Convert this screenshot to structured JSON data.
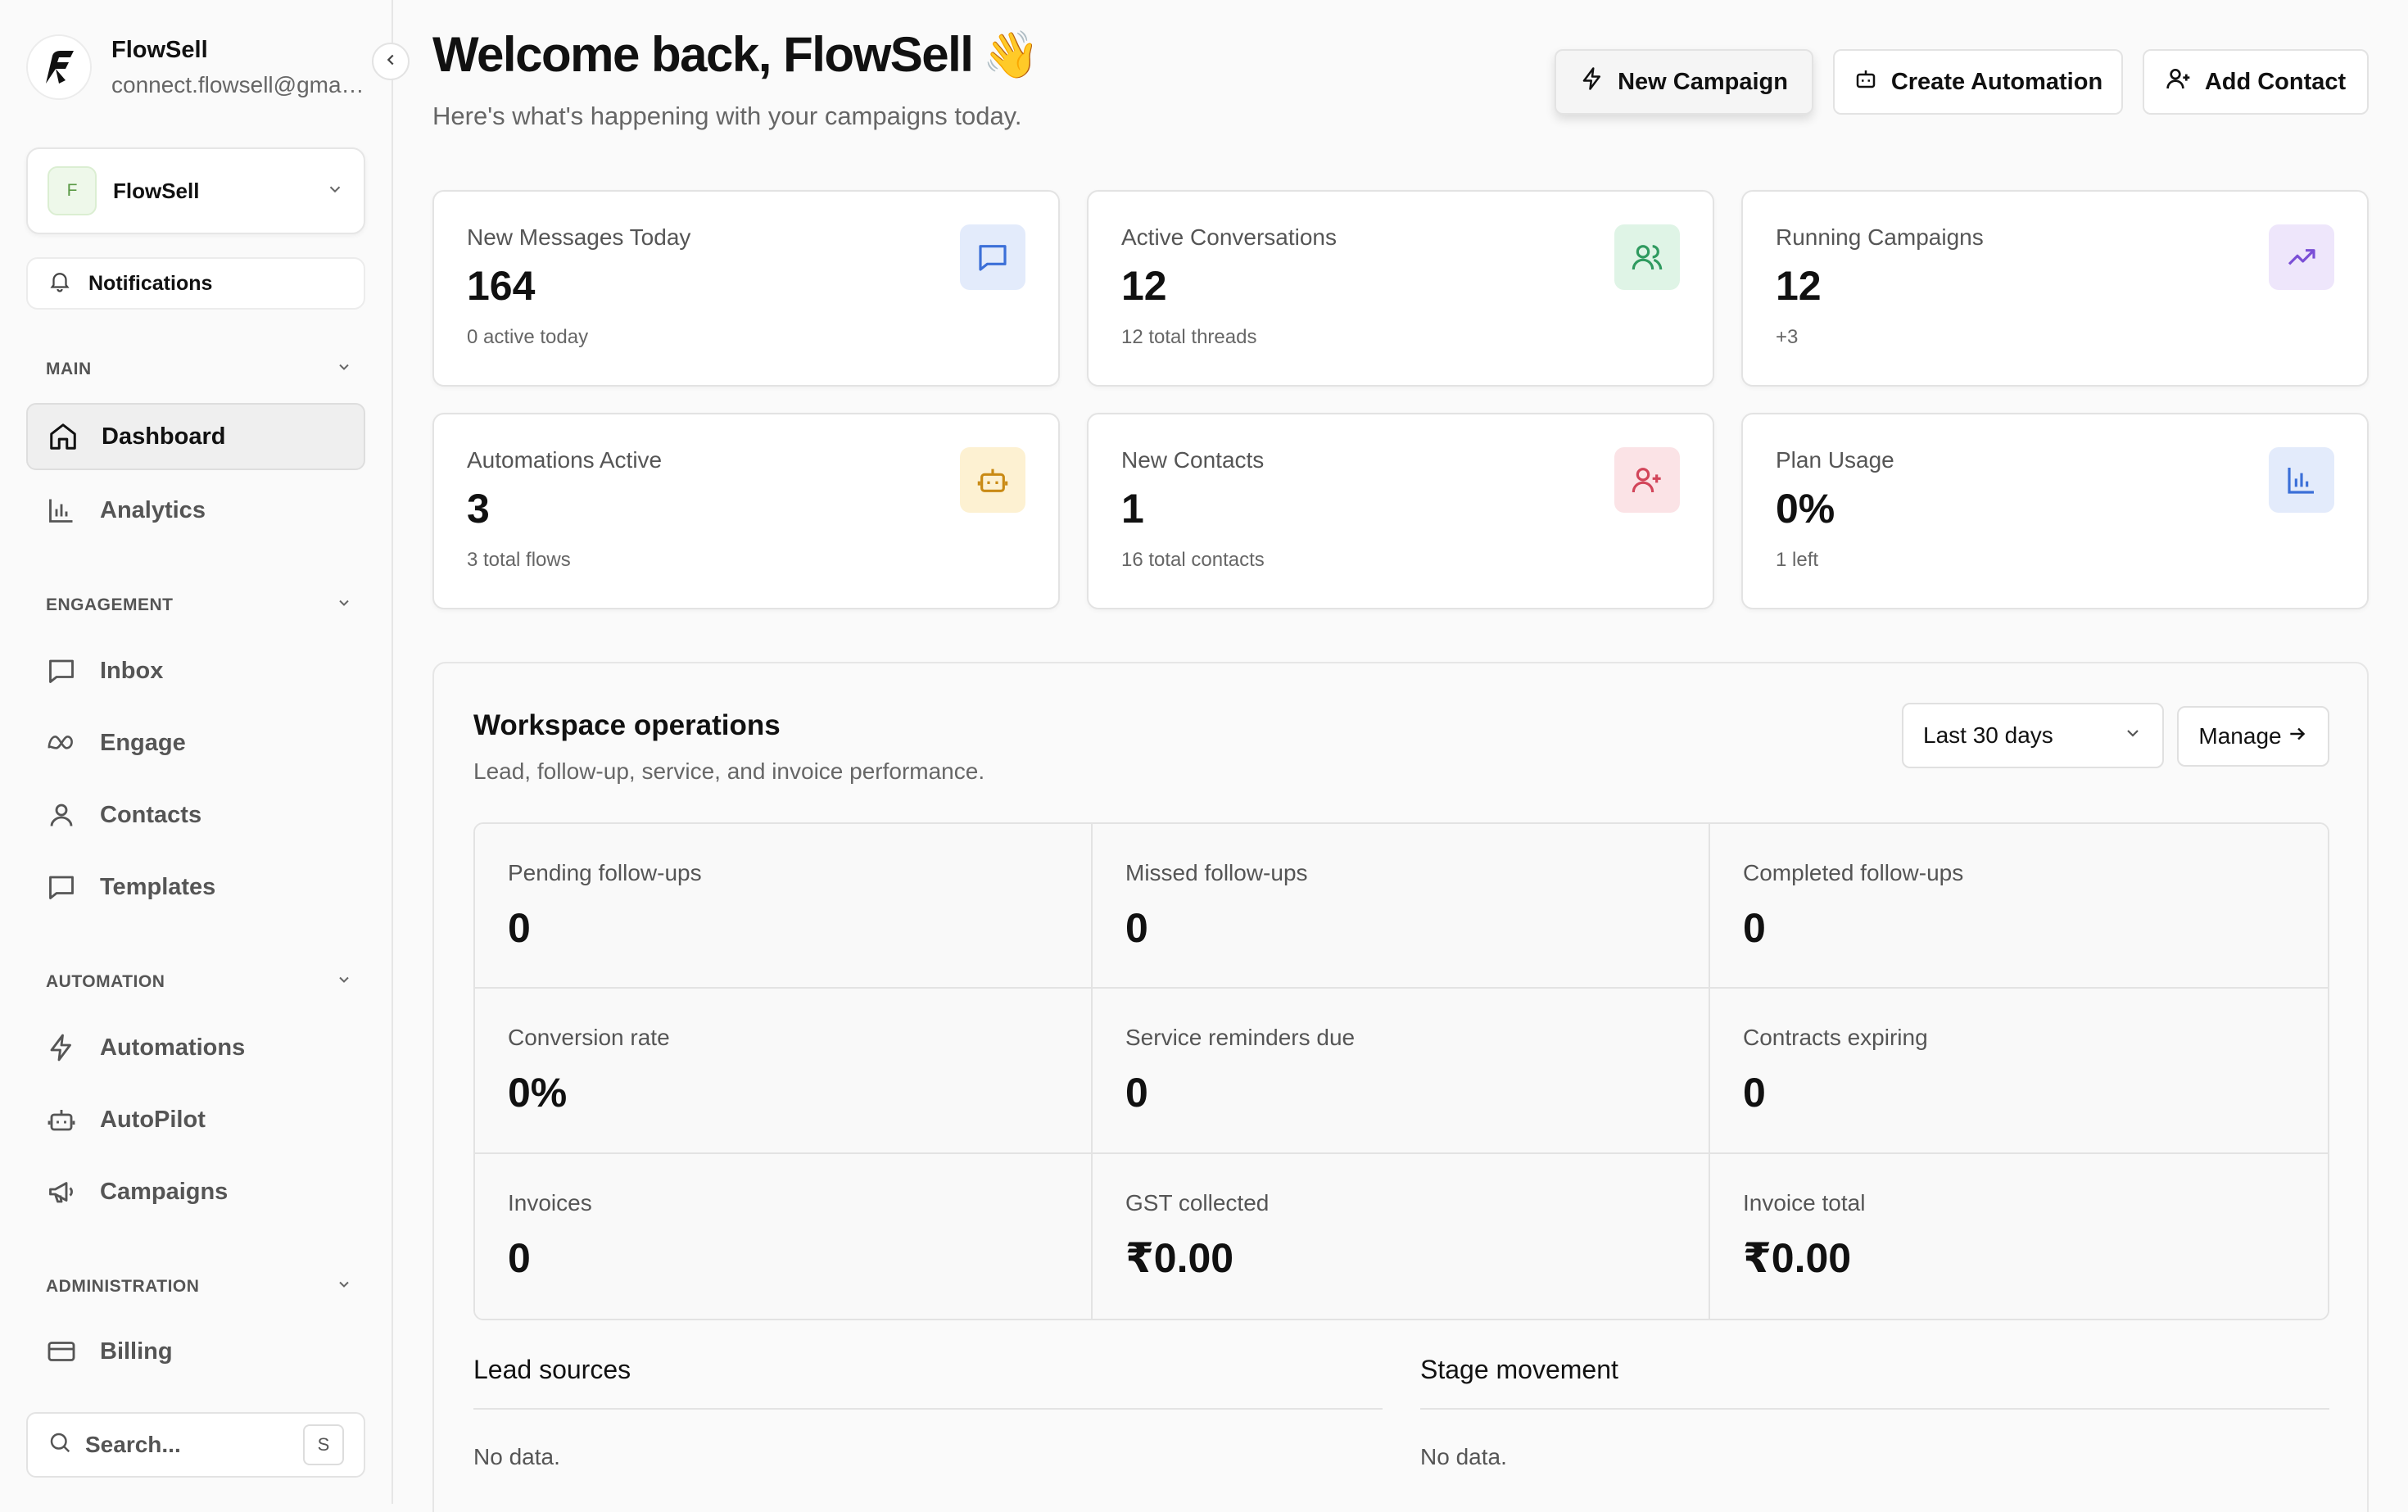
{
  "sidebar": {
    "brand_name": "FlowSell",
    "brand_email": "connect.flowsell@gmai...",
    "workspace_badge": "F",
    "workspace_name": "FlowSell",
    "notifications_label": "Notifications",
    "sections": {
      "main": "MAIN",
      "engagement": "ENGAGEMENT",
      "automation": "AUTOMATION",
      "administration": "ADMINISTRATION"
    },
    "items": {
      "dashboard": "Dashboard",
      "analytics": "Analytics",
      "inbox": "Inbox",
      "engage": "Engage",
      "contacts": "Contacts",
      "templates": "Templates",
      "automations": "Automations",
      "autopilot": "AutoPilot",
      "campaigns": "Campaigns",
      "billing": "Billing"
    },
    "search_placeholder": "Search...",
    "search_shortcut": "S"
  },
  "header": {
    "title": "Welcome back, FlowSell",
    "emoji": "👋",
    "subtitle": "Here's what's happening with your campaigns today.",
    "buttons": {
      "new_campaign": "New Campaign",
      "create_automation": "Create Automation",
      "add_contact": "Add Contact"
    }
  },
  "stats": [
    {
      "title": "New Messages Today",
      "value": "164",
      "sub": "0 active today",
      "icon": "message-icon",
      "color": "#3b6fd8",
      "bg": "#e3ebfb"
    },
    {
      "title": "Active Conversations",
      "value": "12",
      "sub": "12 total threads",
      "icon": "users-icon",
      "color": "#2f9a5f",
      "bg": "#dff4e6"
    },
    {
      "title": "Running Campaigns",
      "value": "12",
      "sub": "+3",
      "icon": "trending-up-icon",
      "color": "#7b4fd6",
      "bg": "#eee6fb"
    },
    {
      "title": "Automations Active",
      "value": "3",
      "sub": "3 total flows",
      "icon": "bot-icon",
      "color": "#c98a14",
      "bg": "#fdf1d2"
    },
    {
      "title": "New Contacts",
      "value": "1",
      "sub": "16 total contacts",
      "icon": "user-plus-icon",
      "color": "#d2455a",
      "bg": "#fbe3e6"
    },
    {
      "title": "Plan Usage",
      "value": "0%",
      "sub": "1 left",
      "icon": "bar-chart-icon",
      "color": "#3b6fd8",
      "bg": "#e3ebfb"
    }
  ],
  "ops": {
    "title": "Workspace operations",
    "subtitle": "Lead, follow-up, service, and invoice performance.",
    "range": "Last 30 days",
    "manage": "Manage",
    "metrics": [
      {
        "label": "Pending follow-ups",
        "value": "0"
      },
      {
        "label": "Missed follow-ups",
        "value": "0"
      },
      {
        "label": "Completed follow-ups",
        "value": "0"
      },
      {
        "label": "Conversion rate",
        "value": "0%"
      },
      {
        "label": "Service reminders due",
        "value": "0"
      },
      {
        "label": "Contracts expiring",
        "value": "0"
      },
      {
        "label": "Invoices",
        "value": "0"
      },
      {
        "label": "GST collected",
        "value": "₹0.00"
      },
      {
        "label": "Invoice total",
        "value": "₹0.00"
      }
    ],
    "lead_sources": {
      "title": "Lead sources",
      "empty": "No data."
    },
    "stage_movement": {
      "title": "Stage movement",
      "empty": "No data."
    }
  }
}
